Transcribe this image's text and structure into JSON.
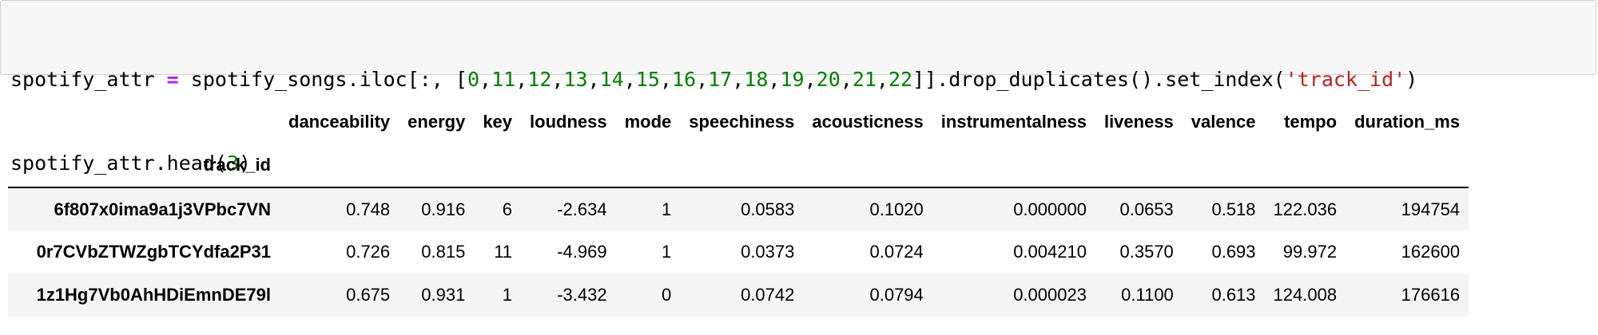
{
  "code_cell": {
    "line1_tokens": [
      {
        "text": "spotify_attr ",
        "type": "plain"
      },
      {
        "text": "=",
        "type": "op"
      },
      {
        "text": " spotify_songs.iloc[:, [",
        "type": "plain"
      },
      {
        "text": "0",
        "type": "num"
      },
      {
        "text": ",",
        "type": "plain"
      },
      {
        "text": "11",
        "type": "num"
      },
      {
        "text": ",",
        "type": "plain"
      },
      {
        "text": "12",
        "type": "num"
      },
      {
        "text": ",",
        "type": "plain"
      },
      {
        "text": "13",
        "type": "num"
      },
      {
        "text": ",",
        "type": "plain"
      },
      {
        "text": "14",
        "type": "num"
      },
      {
        "text": ",",
        "type": "plain"
      },
      {
        "text": "15",
        "type": "num"
      },
      {
        "text": ",",
        "type": "plain"
      },
      {
        "text": "16",
        "type": "num"
      },
      {
        "text": ",",
        "type": "plain"
      },
      {
        "text": "17",
        "type": "num"
      },
      {
        "text": ",",
        "type": "plain"
      },
      {
        "text": "18",
        "type": "num"
      },
      {
        "text": ",",
        "type": "plain"
      },
      {
        "text": "19",
        "type": "num"
      },
      {
        "text": ",",
        "type": "plain"
      },
      {
        "text": "20",
        "type": "num"
      },
      {
        "text": ",",
        "type": "plain"
      },
      {
        "text": "21",
        "type": "num"
      },
      {
        "text": ",",
        "type": "plain"
      },
      {
        "text": "22",
        "type": "num"
      },
      {
        "text": "]].drop_duplicates().set_index(",
        "type": "plain"
      },
      {
        "text": "'track_id'",
        "type": "str"
      },
      {
        "text": ")",
        "type": "plain"
      }
    ],
    "line2_tokens": [
      {
        "text": "spotify_attr.head(",
        "type": "plain"
      },
      {
        "text": "3",
        "type": "num"
      },
      {
        "text": ")",
        "type": "plain"
      }
    ]
  },
  "dataframe": {
    "index_name": "track_id",
    "columns": [
      "danceability",
      "energy",
      "key",
      "loudness",
      "mode",
      "speechiness",
      "acousticness",
      "instrumentalness",
      "liveness",
      "valence",
      "tempo",
      "duration_ms"
    ],
    "rows": [
      {
        "index": "6f807x0ima9a1j3VPbc7VN",
        "values": [
          "0.748",
          "0.916",
          "6",
          "-2.634",
          "1",
          "0.0583",
          "0.1020",
          "0.000000",
          "0.0653",
          "0.518",
          "122.036",
          "194754"
        ]
      },
      {
        "index": "0r7CVbZTWZgbTCYdfa2P31",
        "values": [
          "0.726",
          "0.815",
          "11",
          "-4.969",
          "1",
          "0.0373",
          "0.0724",
          "0.004210",
          "0.3570",
          "0.693",
          "99.972",
          "162600"
        ]
      },
      {
        "index": "1z1Hg7Vb0AhHDiEmnDE79l",
        "values": [
          "0.675",
          "0.931",
          "1",
          "-3.432",
          "0",
          "0.0742",
          "0.0794",
          "0.000023",
          "0.1100",
          "0.613",
          "124.008",
          "176616"
        ]
      }
    ]
  },
  "colors": {
    "operator": "#aa22ff",
    "number": "#008000",
    "string": "#ba2121",
    "cell_background": "#f7f7f7",
    "row_stripe": "#f5f5f5"
  }
}
